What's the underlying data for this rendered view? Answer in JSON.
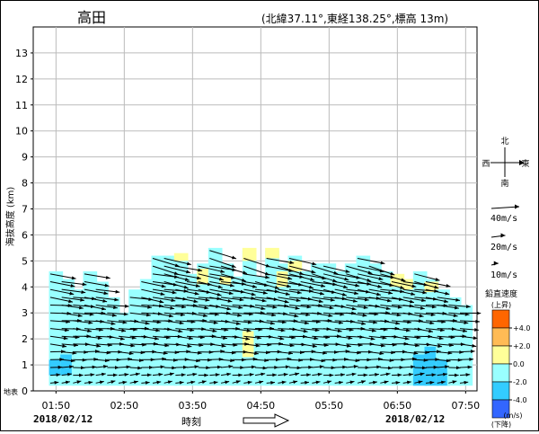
{
  "header": {
    "station_name": "高田",
    "station_info": "(北緯37.11°,東経138.25°,標高 13m)"
  },
  "chart_data": {
    "type": "wind-profiler",
    "title": "高田",
    "subtitle": "(北緯37.11°,東経138.25°,標高 13m)",
    "ylabel": "海抜高度 (km)",
    "xlabel": "時刻",
    "ylim": [
      0,
      14
    ],
    "yticks": [
      "0",
      "1",
      "2",
      "3",
      "4",
      "5",
      "6",
      "7",
      "8",
      "9",
      "10",
      "11",
      "12",
      "13"
    ],
    "x_time_range": [
      "01:30",
      "08:00"
    ],
    "x_tick_labels": [
      "01:50",
      "02:50",
      "03:50",
      "04:50",
      "05:50",
      "06:50",
      "07:50"
    ],
    "x_tick_times": [
      "01:50",
      "02:50",
      "03:50",
      "04:50",
      "05:50",
      "06:50",
      "07:50"
    ],
    "date_left": "2018/02/12",
    "date_right": "2018/02/12",
    "surface_label": "地表",
    "grid": true,
    "time_step_minutes": 10,
    "height_step_km": 0.3,
    "columns": [
      {
        "time": "01:50",
        "top_km": 4.6,
        "w_low": [
          [
            0.6,
            1.2
          ]
        ]
      },
      {
        "time": "02:00",
        "top_km": 4.3,
        "w_low": [
          [
            0.6,
            1.4
          ]
        ]
      },
      {
        "time": "02:10",
        "top_km": 3.9
      },
      {
        "time": "02:20",
        "top_km": 4.6
      },
      {
        "time": "02:30",
        "top_km": 4.2
      },
      {
        "time": "02:40",
        "top_km": 3.6
      },
      {
        "time": "02:50",
        "top_km": 3.0
      },
      {
        "time": "03:00",
        "top_km": 3.9
      },
      {
        "time": "03:10",
        "top_km": 4.3
      },
      {
        "time": "03:20",
        "top_km": 5.2
      },
      {
        "time": "03:30",
        "top_km": 5.2
      },
      {
        "time": "03:40",
        "top_km": 5.1,
        "w_up": [
          [
            5.0,
            5.3
          ]
        ]
      },
      {
        "time": "03:50",
        "top_km": 4.5
      },
      {
        "time": "04:00",
        "top_km": 4.9,
        "w_up": [
          [
            4.1,
            4.7
          ]
        ]
      },
      {
        "time": "04:10",
        "top_km": 5.5
      },
      {
        "time": "04:20",
        "top_km": 4.9,
        "w_up": [
          [
            4.1,
            4.4
          ]
        ]
      },
      {
        "time": "04:30",
        "top_km": 4.4
      },
      {
        "time": "04:40",
        "top_km": 5.4,
        "w_up": [
          [
            5.0,
            5.5
          ],
          [
            1.3,
            2.3
          ]
        ]
      },
      {
        "time": "04:50",
        "top_km": 4.4
      },
      {
        "time": "05:00",
        "top_km": 5.4,
        "w_up": [
          [
            5.1,
            5.5
          ]
        ]
      },
      {
        "time": "05:10",
        "top_km": 4.9,
        "w_up": [
          [
            4.0,
            4.6
          ]
        ]
      },
      {
        "time": "05:20",
        "top_km": 5.2,
        "w_up": [
          [
            4.6,
            5.0
          ]
        ]
      },
      {
        "time": "05:30",
        "top_km": 4.6
      },
      {
        "time": "05:40",
        "top_km": 4.9
      },
      {
        "time": "05:50",
        "top_km": 4.9
      },
      {
        "time": "06:00",
        "top_km": 4.6
      },
      {
        "time": "06:10",
        "top_km": 4.9
      },
      {
        "time": "06:20",
        "top_km": 5.2
      },
      {
        "time": "06:30",
        "top_km": 4.9
      },
      {
        "time": "06:40",
        "top_km": 4.6
      },
      {
        "time": "06:50",
        "top_km": 4.3,
        "w_up": [
          [
            4.0,
            4.5
          ]
        ]
      },
      {
        "time": "07:00",
        "top_km": 4.3,
        "w_up": [
          [
            3.9,
            4.3
          ]
        ]
      },
      {
        "time": "07:10",
        "top_km": 4.6,
        "w_low": [
          [
            0.2,
            1.4
          ]
        ]
      },
      {
        "time": "07:20",
        "top_km": 4.3,
        "w_low": [
          [
            0.2,
            1.7
          ]
        ],
        "w_up": [
          [
            3.8,
            4.2
          ]
        ]
      },
      {
        "time": "07:30",
        "top_km": 3.9,
        "w_low": [
          [
            0.2,
            1.2
          ]
        ]
      },
      {
        "time": "07:40",
        "top_km": 3.6
      },
      {
        "time": "07:50",
        "top_km": 3.3
      }
    ],
    "wind_profile": {
      "description": "wind from west (eastward arrows); speed increases with height",
      "speed_at_heights": [
        {
          "height_km": 0.3,
          "speed_ms": 12,
          "direction_deg": 80
        },
        {
          "height_km": 1.0,
          "speed_ms": 18,
          "direction_deg": 90
        },
        {
          "height_km": 2.0,
          "speed_ms": 25,
          "direction_deg": 95
        },
        {
          "height_km": 3.0,
          "speed_ms": 30,
          "direction_deg": 95
        },
        {
          "height_km": 4.0,
          "speed_ms": 35,
          "direction_deg": 100
        },
        {
          "height_km": 5.0,
          "speed_ms": 40,
          "direction_deg": 105
        }
      ]
    }
  },
  "legend": {
    "compass": {
      "north": "北",
      "south": "南",
      "west": "西",
      "east": "東"
    },
    "wind_scale": [
      {
        "label": "40m/s",
        "speed_ms": 40
      },
      {
        "label": "20m/s",
        "speed_ms": 20
      },
      {
        "label": "10m/s",
        "speed_ms": 10
      }
    ],
    "vertical_velocity": {
      "title": "鉛直速度",
      "top_note": "(上昇)",
      "bottom_note": "(下降)",
      "unit": "(m/s)",
      "bins": [
        {
          "color": "#ff6600"
        },
        {
          "color": "#ffbb55"
        },
        {
          "color": "#ffff99"
        },
        {
          "color": "#99ffff"
        },
        {
          "color": "#33ccff"
        },
        {
          "color": "#3366ff"
        }
      ],
      "tick_labels": [
        "+4.0",
        "+2.0",
        "0.0",
        "-2.0",
        "-4.0"
      ]
    }
  }
}
